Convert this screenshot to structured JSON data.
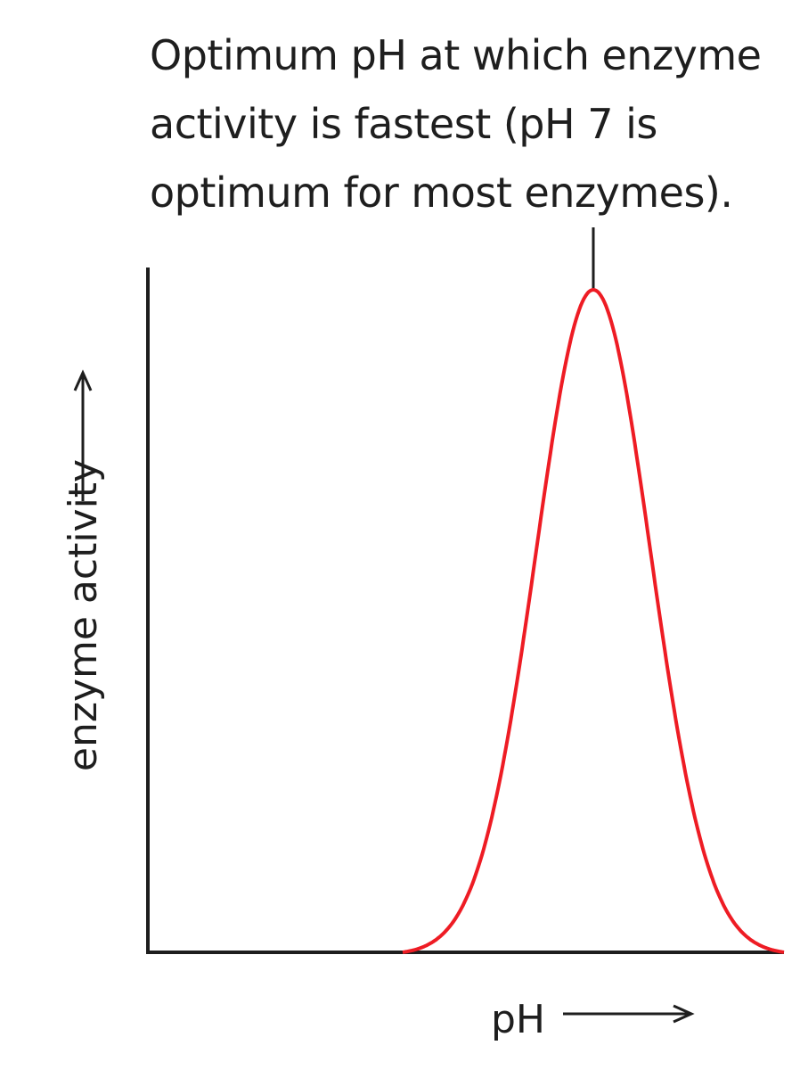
{
  "chart_data": {
    "type": "line",
    "annotation": {
      "lines": [
        "Optimum pH at which enzyme",
        "activity is fastest (pH 7 is",
        "optimum for most enzymes)."
      ]
    },
    "xlabel": "pH",
    "ylabel": "enzyme activity",
    "x_ticks": [],
    "y_ticks": [],
    "grid": false,
    "legend": "none",
    "series": [
      {
        "color": "#ee1c24",
        "shape": "bell",
        "x_range": [
          4,
          10
        ],
        "peak_x": 7,
        "peak_y": 1.0,
        "spread": 0.9,
        "values_relative": [
          0.0,
          0.06,
          0.25,
          0.6,
          0.92,
          1.0,
          0.92,
          0.6,
          0.25,
          0.06,
          0.0
        ]
      }
    ]
  }
}
